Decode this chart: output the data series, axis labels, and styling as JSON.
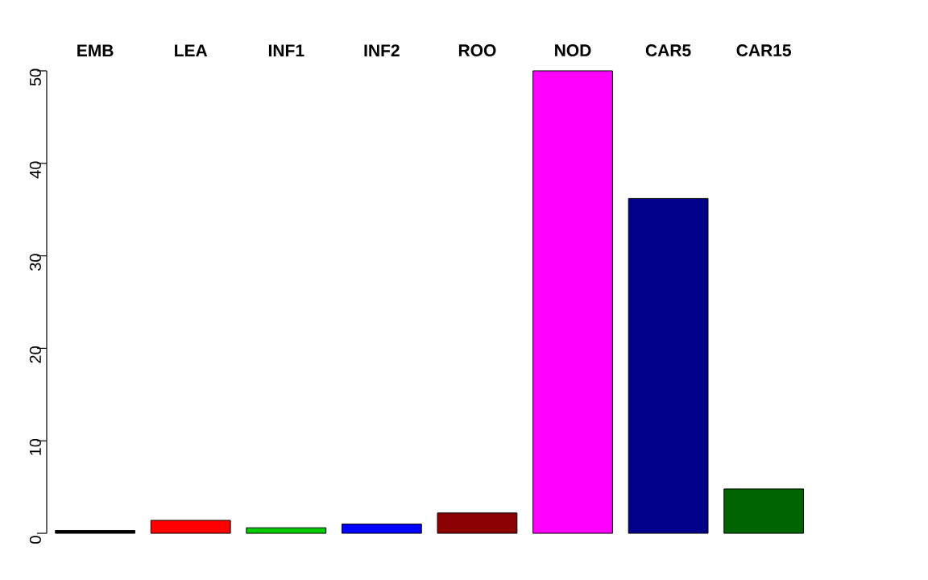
{
  "chart_data": {
    "type": "bar",
    "categories": [
      "EMB",
      "LEA",
      "INF1",
      "INF2",
      "ROO",
      "NOD",
      "CAR5",
      "CAR15"
    ],
    "values": [
      0.3,
      1.4,
      0.6,
      1.0,
      2.2,
      50,
      36.2,
      4.8
    ],
    "colors": [
      "#000000",
      "#ff0000",
      "#00cd00",
      "#0000ff",
      "#8b0000",
      "#ff00ff",
      "#00008b",
      "#006400"
    ],
    "ylim": [
      0,
      50
    ],
    "yticks": [
      0,
      10,
      20,
      30,
      40,
      50
    ]
  }
}
